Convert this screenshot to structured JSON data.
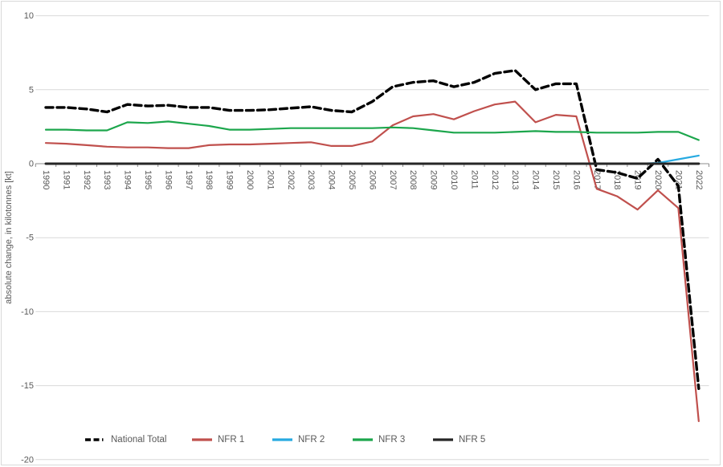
{
  "chart_data": {
    "type": "line",
    "title": "",
    "xlabel": "",
    "ylabel": "absolute change, in kilotonnes [kt]",
    "ylim": [
      -20,
      10
    ],
    "y_ticks": [
      10,
      5,
      0,
      -5,
      -10,
      -15,
      -20
    ],
    "grid": true,
    "legend_position": "bottom",
    "x": [
      1990,
      1991,
      1992,
      1993,
      1994,
      1995,
      1996,
      1997,
      1998,
      1999,
      2000,
      2001,
      2002,
      2003,
      2004,
      2005,
      2006,
      2007,
      2008,
      2009,
      2010,
      2011,
      2012,
      2013,
      2014,
      2015,
      2016,
      2017,
      2018,
      2019,
      2020,
      2021,
      2022
    ],
    "series": [
      {
        "name": "National Total",
        "color": "#000000",
        "dashed": true,
        "values": [
          3.8,
          3.8,
          3.7,
          3.5,
          4.0,
          3.9,
          3.95,
          3.8,
          3.8,
          3.6,
          3.6,
          3.65,
          3.75,
          3.85,
          3.6,
          3.5,
          4.2,
          5.2,
          5.5,
          5.6,
          5.2,
          5.5,
          6.1,
          6.3,
          5.0,
          5.4,
          5.4,
          -0.4,
          -0.6,
          -1.0,
          0.3,
          -1.5,
          -15.2
        ]
      },
      {
        "name": "NFR 1",
        "color": "#c0504d",
        "dashed": false,
        "values": [
          1.4,
          1.35,
          1.25,
          1.15,
          1.1,
          1.1,
          1.05,
          1.05,
          1.25,
          1.3,
          1.3,
          1.35,
          1.4,
          1.45,
          1.2,
          1.2,
          1.5,
          2.6,
          3.2,
          3.35,
          3.0,
          3.55,
          4.0,
          4.2,
          2.8,
          3.3,
          3.2,
          -1.7,
          -2.2,
          -3.1,
          -1.8,
          -3.0,
          -17.4
        ]
      },
      {
        "name": "NFR 2",
        "color": "#27aae1",
        "dashed": false,
        "values": [
          0,
          0,
          0,
          0,
          0,
          0,
          0,
          0,
          0,
          0,
          0,
          0,
          0,
          0,
          0,
          0,
          0,
          0,
          0,
          0,
          0,
          0,
          0,
          0,
          0,
          0,
          0,
          0,
          0,
          0,
          0.05,
          0.3,
          0.55
        ]
      },
      {
        "name": "NFR 3",
        "color": "#1ca64c",
        "dashed": false,
        "values": [
          2.3,
          2.3,
          2.25,
          2.25,
          2.8,
          2.75,
          2.85,
          2.7,
          2.55,
          2.3,
          2.3,
          2.35,
          2.4,
          2.4,
          2.4,
          2.4,
          2.4,
          2.45,
          2.4,
          2.25,
          2.1,
          2.1,
          2.1,
          2.15,
          2.2,
          2.15,
          2.15,
          2.1,
          2.1,
          2.1,
          2.15,
          2.15,
          1.6
        ]
      },
      {
        "name": "NFR 5",
        "color": "#262626",
        "dashed": false,
        "values": [
          0,
          0,
          0,
          0,
          0,
          0,
          0,
          0,
          0,
          0,
          0,
          0,
          0,
          0,
          0,
          0,
          0,
          0,
          0,
          0,
          0,
          0,
          0,
          0,
          0,
          0,
          0,
          0,
          0,
          0,
          0,
          0,
          0
        ]
      }
    ],
    "colors": {
      "gridline": "#d9d9d9",
      "axis": "#8c8c8c",
      "tick_text": "#595959",
      "border": "#d9d9d9"
    }
  }
}
